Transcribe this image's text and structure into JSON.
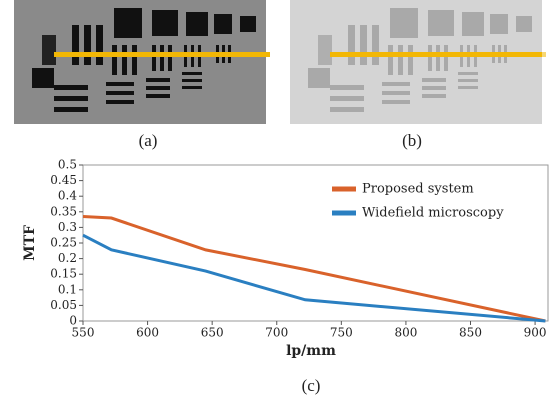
{
  "panel_a_caption": "(a)",
  "panel_b_caption": "(b)",
  "chart_data": {
    "type": "line",
    "caption": "(c)",
    "xlabel": "lp/mm",
    "ylabel": "MTF",
    "xlim": [
      550,
      910
    ],
    "xticks": [
      550,
      600,
      650,
      700,
      750,
      800,
      850,
      900
    ],
    "ylim": [
      0,
      0.5
    ],
    "yticks": [
      0,
      0.05,
      0.1,
      0.15,
      0.2,
      0.25,
      0.3,
      0.35,
      0.4,
      0.45,
      0.5
    ],
    "x": [
      550,
      572,
      645,
      722,
      908
    ],
    "series": [
      {
        "name": "Proposed system",
        "color": "#d9622b",
        "values": [
          0.335,
          0.33,
          0.228,
          0.165,
          0.0
        ]
      },
      {
        "name": "Widefield microscopy",
        "color": "#2a7fc1",
        "values": [
          0.275,
          0.228,
          0.16,
          0.068,
          0.0
        ]
      }
    ]
  }
}
